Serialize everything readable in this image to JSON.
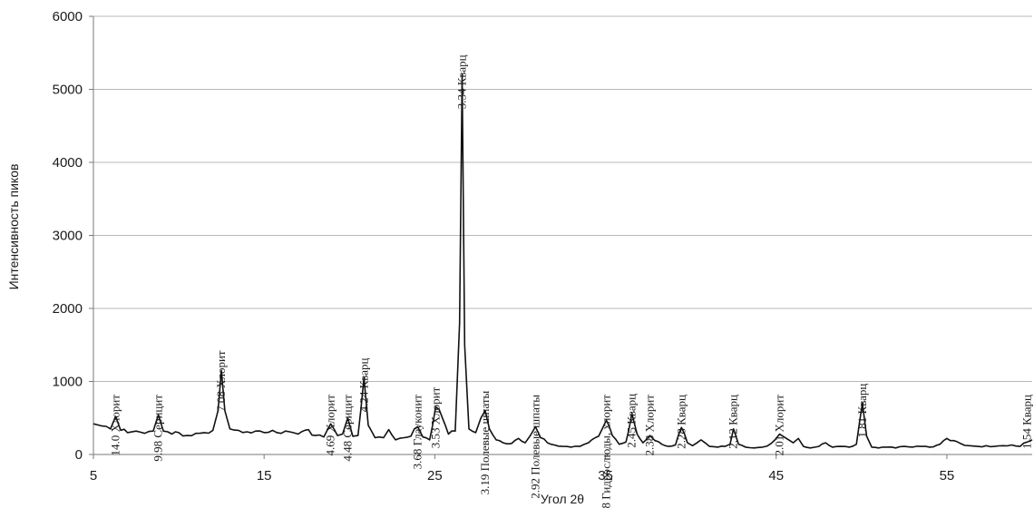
{
  "chart_data": {
    "type": "line",
    "xlabel": "Угол 2θ",
    "ylabel": "Интенсивность пиков",
    "xlim": [
      5,
      60
    ],
    "ylim": [
      0,
      6000
    ],
    "x_ticks": [
      "5",
      "15",
      "25",
      "35",
      "45",
      "55"
    ],
    "y_ticks": [
      "0",
      "1000",
      "2000",
      "3000",
      "4000",
      "5000",
      "6000"
    ],
    "grid": "horizontal",
    "series": [
      {
        "values": [
          [
            5,
            420
          ],
          [
            5.5,
            390
          ],
          [
            6,
            350
          ],
          [
            6.3,
            520
          ],
          [
            6.6,
            330
          ],
          [
            7,
            300
          ],
          [
            7.5,
            320
          ],
          [
            8,
            290
          ],
          [
            8.5,
            320
          ],
          [
            8.8,
            540
          ],
          [
            9.1,
            320
          ],
          [
            9.6,
            280
          ],
          [
            10,
            300
          ],
          [
            10.5,
            260
          ],
          [
            11,
            290
          ],
          [
            11.5,
            300
          ],
          [
            12,
            330
          ],
          [
            12.3,
            600
          ],
          [
            12.5,
            1150
          ],
          [
            12.7,
            600
          ],
          [
            13,
            350
          ],
          [
            13.5,
            330
          ],
          [
            14,
            310
          ],
          [
            14.5,
            320
          ],
          [
            15,
            300
          ],
          [
            15.5,
            330
          ],
          [
            16,
            290
          ],
          [
            16.5,
            310
          ],
          [
            17,
            280
          ],
          [
            17.6,
            340
          ],
          [
            18,
            260
          ],
          [
            18.5,
            240
          ],
          [
            18.9,
            420
          ],
          [
            19.3,
            260
          ],
          [
            19.6,
            280
          ],
          [
            19.9,
            500
          ],
          [
            20.2,
            250
          ],
          [
            20.5,
            260
          ],
          [
            20.85,
            1050
          ],
          [
            21.1,
            400
          ],
          [
            21.5,
            230
          ],
          [
            22,
            230
          ],
          [
            22.3,
            340
          ],
          [
            22.7,
            200
          ],
          [
            23.2,
            230
          ],
          [
            23.6,
            250
          ],
          [
            24,
            380
          ],
          [
            24.3,
            240
          ],
          [
            24.7,
            200
          ],
          [
            25.05,
            650
          ],
          [
            25.25,
            620
          ],
          [
            25.45,
            500
          ],
          [
            25.8,
            280
          ],
          [
            26.2,
            320
          ],
          [
            26.45,
            1800
          ],
          [
            26.6,
            5200
          ],
          [
            26.75,
            1500
          ],
          [
            27,
            350
          ],
          [
            27.4,
            300
          ],
          [
            27.7,
            500
          ],
          [
            27.95,
            600
          ],
          [
            28.2,
            350
          ],
          [
            28.6,
            200
          ],
          [
            29,
            160
          ],
          [
            29.5,
            150
          ],
          [
            29.9,
            220
          ],
          [
            30.3,
            160
          ],
          [
            30.6,
            260
          ],
          [
            30.9,
            380
          ],
          [
            31.2,
            230
          ],
          [
            31.6,
            160
          ],
          [
            32,
            130
          ],
          [
            32.5,
            110
          ],
          [
            33,
            100
          ],
          [
            33.5,
            110
          ],
          [
            34,
            160
          ],
          [
            34.6,
            250
          ],
          [
            35.05,
            470
          ],
          [
            35.4,
            260
          ],
          [
            35.8,
            140
          ],
          [
            36.2,
            170
          ],
          [
            36.55,
            560
          ],
          [
            36.85,
            280
          ],
          [
            37.2,
            160
          ],
          [
            37.6,
            260
          ],
          [
            37.9,
            190
          ],
          [
            38.3,
            140
          ],
          [
            38.7,
            110
          ],
          [
            39.1,
            130
          ],
          [
            39.45,
            370
          ],
          [
            39.8,
            160
          ],
          [
            40.1,
            120
          ],
          [
            40.6,
            200
          ],
          [
            41.1,
            110
          ],
          [
            41.6,
            100
          ],
          [
            42,
            110
          ],
          [
            42.3,
            140
          ],
          [
            42.5,
            350
          ],
          [
            42.8,
            140
          ],
          [
            43.2,
            100
          ],
          [
            43.7,
            90
          ],
          [
            44.2,
            100
          ],
          [
            44.7,
            150
          ],
          [
            45.2,
            280
          ],
          [
            45.6,
            220
          ],
          [
            46,
            160
          ],
          [
            46.3,
            220
          ],
          [
            46.6,
            110
          ],
          [
            47,
            90
          ],
          [
            47.5,
            110
          ],
          [
            47.9,
            160
          ],
          [
            48.3,
            100
          ],
          [
            48.8,
            110
          ],
          [
            49.3,
            100
          ],
          [
            49.7,
            140
          ],
          [
            50.05,
            700
          ],
          [
            50.3,
            250
          ],
          [
            50.6,
            100
          ],
          [
            51,
            90
          ],
          [
            51.5,
            100
          ],
          [
            52,
            90
          ],
          [
            52.5,
            110
          ],
          [
            53,
            100
          ],
          [
            53.5,
            110
          ],
          [
            54,
            100
          ],
          [
            54.6,
            140
          ],
          [
            55,
            220
          ],
          [
            55.4,
            190
          ],
          [
            55.8,
            150
          ],
          [
            56.3,
            120
          ],
          [
            56.8,
            110
          ],
          [
            57.3,
            120
          ],
          [
            57.8,
            110
          ],
          [
            58.3,
            120
          ],
          [
            58.8,
            130
          ],
          [
            59.3,
            110
          ],
          [
            59.7,
            170
          ],
          [
            60,
            200
          ]
        ]
      }
    ],
    "annotations": [
      {
        "text": "14.0  Хлорит",
        "x": 6.3,
        "y": 520
      },
      {
        "text": "9.98 Серицит",
        "x": 8.8,
        "y": 540
      },
      {
        "text": "7.08  Хлорит",
        "x": 12.5,
        "y": 1150
      },
      {
        "text": "4.69  Хлорит",
        "x": 18.9,
        "y": 420
      },
      {
        "text": "4.48 Серицит",
        "x": 19.9,
        "y": 500
      },
      {
        "text": "4.24 Кварц",
        "x": 20.85,
        "y": 1050
      },
      {
        "text": "3.68 Глауконит",
        "x": 24,
        "y": 380
      },
      {
        "text": "3.53  Хлорит",
        "x": 25.05,
        "y": 650
      },
      {
        "text": "3.34 Кварц",
        "x": 26.6,
        "y": 5200
      },
      {
        "text": "3.19 Полевые шпаты",
        "x": 27.95,
        "y": 600
      },
      {
        "text": "2.92 Полевые шпаты",
        "x": 30.9,
        "y": 380
      },
      {
        "text": "2.58  Гидрослюды, хлорит",
        "x": 35.05,
        "y": 470
      },
      {
        "text": "2.45 Кварц",
        "x": 36.55,
        "y": 560
      },
      {
        "text": "2.38  Хлорит",
        "x": 37.6,
        "y": 260
      },
      {
        "text": "2.28 Кварц",
        "x": 39.45,
        "y": 370
      },
      {
        "text": "2.12 Кварц",
        "x": 42.5,
        "y": 350
      },
      {
        "text": "2.01 Хлорит",
        "x": 45.2,
        "y": 280
      },
      {
        "text": "1.81 Кварц",
        "x": 50.05,
        "y": 700
      },
      {
        "text": "1.54 Кварц",
        "x": 59.7,
        "y": 170
      }
    ]
  }
}
